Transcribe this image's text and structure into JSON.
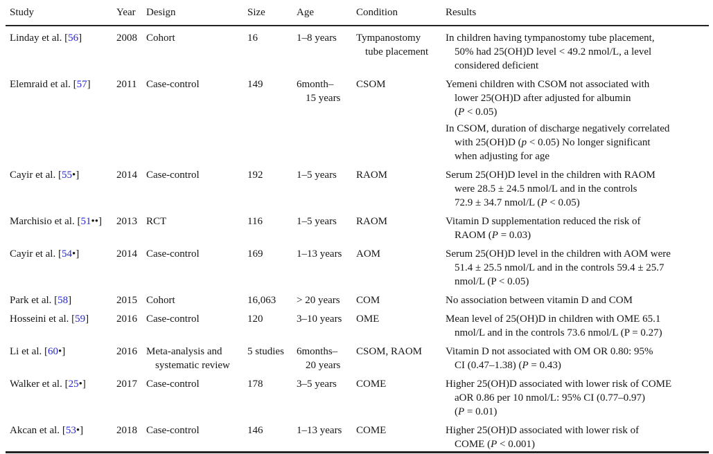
{
  "page": {
    "background": "#ffffff",
    "text_color": "#161616",
    "rule_color": "#222222",
    "citation_color": "#2626cc"
  },
  "table": {
    "columns": [
      "Study",
      "Year",
      "Design",
      "Size",
      "Age",
      "Condition",
      "Results"
    ],
    "rows": [
      {
        "study": {
          "name": "Linday et al.",
          "ref": "56",
          "marker": ""
        },
        "year": "2008",
        "design": [
          "Cohort"
        ],
        "size": "16",
        "age": [
          "1–8 years"
        ],
        "condition": [
          "Tympanostomy",
          "tube placement"
        ],
        "results": [
          [
            "In children having tympanostomy tube placement,",
            "50% had 25(OH)D level < 49.2 nmol/L, a level",
            "considered deficient"
          ]
        ]
      },
      {
        "study": {
          "name": "Elemraid et al.",
          "ref": "57",
          "marker": ""
        },
        "year": "2011",
        "design": [
          "Case-control"
        ],
        "size": "149",
        "age": [
          "6month–",
          "15 years"
        ],
        "condition": [
          "CSOM"
        ],
        "results": [
          [
            "Yemeni children with CSOM not associated with",
            "lower 25(OH)D after adjusted for albumin",
            "(*P* < 0.05)"
          ],
          [
            "In CSOM, duration of discharge negatively correlated",
            "with 25(OH)D (*p* < 0.05) No longer significant",
            "when adjusting for age"
          ]
        ]
      },
      {
        "study": {
          "name": "Cayir et al.",
          "ref": "55",
          "marker": "•"
        },
        "year": "2014",
        "design": [
          "Case-control"
        ],
        "size": "192",
        "age": [
          "1–5 years"
        ],
        "condition": [
          "RAOM"
        ],
        "results": [
          [
            "Serum 25(OH)D level in the children with RAOM",
            "were 28.5 ± 24.5 nmol/L and in the controls",
            "72.9 ± 34.7 nmol/L (*P* < 0.05)"
          ]
        ]
      },
      {
        "study": {
          "name": "Marchisio et al.",
          "ref": "51",
          "marker": "••"
        },
        "year": "2013",
        "design": [
          "RCT"
        ],
        "size": "116",
        "age": [
          "1–5 years"
        ],
        "condition": [
          "RAOM"
        ],
        "results": [
          [
            "Vitamin D supplementation reduced the risk of",
            "RAOM (*P* = 0.03)"
          ]
        ]
      },
      {
        "study": {
          "name": "Cayir et al.",
          "ref": "54",
          "marker": "•"
        },
        "year": "2014",
        "design": [
          "Case-control"
        ],
        "size": "169",
        "age": [
          "1–13 years"
        ],
        "condition": [
          "AOM"
        ],
        "results": [
          [
            "Serum 25(OH)D level in the children with AOM were",
            "51.4 ± 25.5 nmol/L and in the controls 59.4 ± 25.7",
            "nmol/L (P < 0.05)"
          ]
        ]
      },
      {
        "study": {
          "name": "Park et al.",
          "ref": "58",
          "marker": ""
        },
        "year": "2015",
        "design": [
          "Cohort"
        ],
        "size": "16,063",
        "age": [
          "> 20 years"
        ],
        "condition": [
          "COM"
        ],
        "results": [
          [
            "No association between vitamin D and COM"
          ]
        ]
      },
      {
        "study": {
          "name": "Hosseini et al.",
          "ref": "59",
          "marker": ""
        },
        "year": "2016",
        "design": [
          "Case-control"
        ],
        "size": "120",
        "age": [
          "3–10 years"
        ],
        "condition": [
          "OME"
        ],
        "results": [
          [
            "Mean level of 25(OH)D in children with OME 65.1",
            "nmol/L and in the controls 73.6 nmol/L (P = 0.27)"
          ]
        ]
      },
      {
        "study": {
          "name": "Li et al.",
          "ref": "60",
          "marker": "•"
        },
        "year": "2016",
        "design": [
          "Meta-analysis and",
          "systematic review"
        ],
        "size": "5 studies",
        "age": [
          "6months–",
          "20 years"
        ],
        "condition": [
          "CSOM, RAOM"
        ],
        "results": [
          [
            "Vitamin D not associated with OM OR 0.80: 95%",
            "CI (0.47–1.38) (*P* = 0.43)"
          ]
        ]
      },
      {
        "study": {
          "name": "Walker et al.",
          "ref": "25",
          "marker": "•"
        },
        "year": "2017",
        "design": [
          "Case-control"
        ],
        "size": "178",
        "age": [
          "3–5 years"
        ],
        "condition": [
          "COME"
        ],
        "results": [
          [
            "Higher 25(OH)D associated with lower risk of COME",
            "aOR 0.86 per 10 nmol/L: 95% CI (0.77–0.97)",
            "(*P* = 0.01)"
          ]
        ]
      },
      {
        "study": {
          "name": "Akcan et al.",
          "ref": "53",
          "marker": "•"
        },
        "year": "2018",
        "design": [
          "Case-control"
        ],
        "size": "146",
        "age": [
          "1–13 years"
        ],
        "condition": [
          "COME"
        ],
        "results": [
          [
            "Higher 25(OH)D associated with lower risk of",
            "COME (*P* < 0.001)"
          ]
        ]
      }
    ]
  }
}
